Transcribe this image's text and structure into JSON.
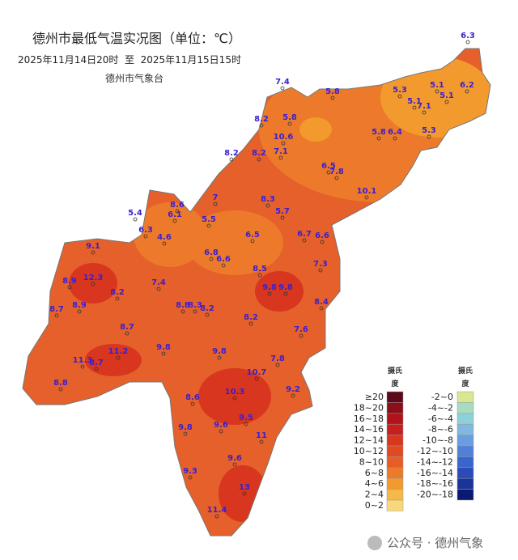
{
  "title": "德州市最低气温实况图（单位：℃）",
  "subtitle": "2025年11月14日20时  至  2025年11月15日15时",
  "publisher": "德州市气象台",
  "watermark": "公众号 · 德州气象",
  "stations": [
    6.3,
    7.4,
    5.8,
    5.3,
    5.1,
    6.2,
    5.1,
    5.1,
    7.1,
    8.2,
    5.8,
    5.8,
    6.4,
    5.3,
    10.6,
    7.1,
    8.2,
    8.2,
    6.5,
    7.8,
    10.1,
    7,
    8.3,
    8.6,
    5.4,
    6.1,
    5.7,
    5.5,
    6.3,
    4.6,
    6.5,
    6.7,
    6.6,
    9.1,
    6.8,
    6.6,
    7.3,
    12.3,
    8.9,
    8.5,
    7.4,
    9.8,
    9.8,
    8.2,
    8.9,
    8.4,
    8.7,
    8.8,
    8.3,
    8.2,
    8.2,
    8.7,
    7.6,
    9.8,
    11.2,
    9.8,
    7.8,
    11.3,
    8.7,
    10.7,
    8.8,
    9.2,
    10.3,
    8.6,
    9.5,
    9.6,
    9.8,
    11,
    9.6,
    9.3,
    13,
    11.4
  ],
  "legend": {
    "header_top": "摄氏",
    "header_bottom": "度",
    "warm": [
      {
        "label": "≥20",
        "color": "#5a0a1a"
      },
      {
        "label": "18~20",
        "color": "#8b0f1a"
      },
      {
        "label": "16~18",
        "color": "#b0141a"
      },
      {
        "label": "14~16",
        "color": "#c81e1e"
      },
      {
        "label": "12~14",
        "color": "#d8361e"
      },
      {
        "label": "10~12",
        "color": "#e04a22"
      },
      {
        "label": "8~10",
        "color": "#e65e26"
      },
      {
        "label": "6~8",
        "color": "#ec7a2a"
      },
      {
        "label": "4~6",
        "color": "#f29a2e"
      },
      {
        "label": "2~4",
        "color": "#f6b848"
      },
      {
        "label": "0~2",
        "color": "#f8d878"
      }
    ],
    "cold": [
      {
        "label": "-2~0",
        "color": "#d8e890"
      },
      {
        "label": "-4~-2",
        "color": "#a8dcc0"
      },
      {
        "label": "-6~-4",
        "color": "#8ed0d8"
      },
      {
        "label": "-8~-6",
        "color": "#80b8e0"
      },
      {
        "label": "-10~-8",
        "color": "#6a9ee0"
      },
      {
        "label": "-12~-10",
        "color": "#5080d8"
      },
      {
        "label": "-14~-12",
        "color": "#3a66cc"
      },
      {
        "label": "-16~-14",
        "color": "#2a4cb8"
      },
      {
        "label": "-18~-16",
        "color": "#1a3498"
      },
      {
        "label": "-20~-18",
        "color": "#0a1a70"
      }
    ]
  }
}
